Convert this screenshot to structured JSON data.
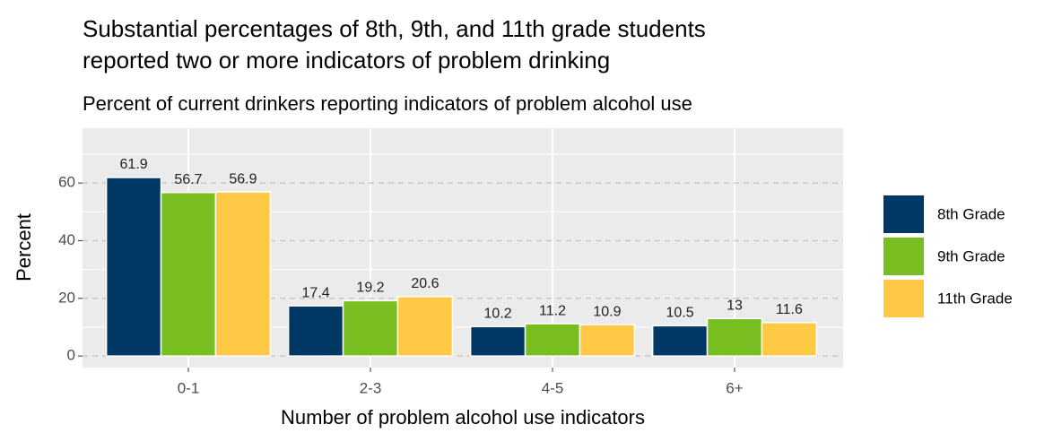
{
  "chart_data": {
    "type": "bar",
    "title": [
      "Substantial percentages of 8th, 9th, and 11th grade students",
      "reported two or more indicators of problem drinking"
    ],
    "subtitle": "Percent of current drinkers reporting indicators of problem alcohol use",
    "x_label": "Number of problem alcohol use indicators",
    "y_label": "Percent",
    "categories": [
      "0-1",
      "2-3",
      "4-5",
      "6+"
    ],
    "series": [
      {
        "name": "8th Grade",
        "color": "#003865",
        "values": [
          61.9,
          17.4,
          10.2,
          10.5
        ]
      },
      {
        "name": "9th Grade",
        "color": "#78be20",
        "values": [
          56.7,
          19.2,
          11.2,
          13
        ]
      },
      {
        "name": "11th Grade",
        "color": "#ffc845",
        "values": [
          56.9,
          20.6,
          10.9,
          11.6
        ]
      }
    ],
    "ylim": [
      -4,
      79
    ],
    "yticks": [
      0,
      20,
      40,
      60
    ],
    "y_minor_grid": [
      10,
      30,
      50,
      70
    ],
    "grid": true,
    "legend": "right"
  }
}
